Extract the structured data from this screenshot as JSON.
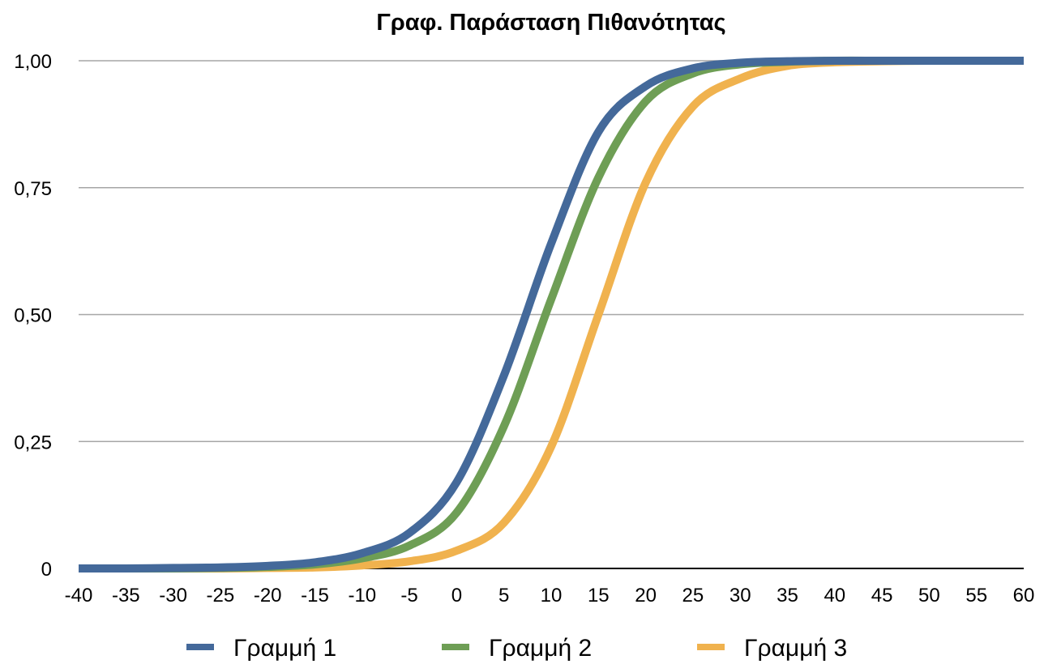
{
  "chart_data": {
    "type": "line",
    "title": "Γραφ. Παράσταση Πιθανότητας",
    "xlabel": "",
    "ylabel": "",
    "xlim": [
      -40,
      60
    ],
    "ylim": [
      0,
      1
    ],
    "x_ticks": [
      -40,
      -35,
      -30,
      -25,
      -20,
      -15,
      -10,
      -5,
      0,
      5,
      10,
      15,
      20,
      25,
      30,
      35,
      40,
      45,
      50,
      55,
      60
    ],
    "x_tick_labels": [
      "-40",
      "-35",
      "-30",
      "-25",
      "-20",
      "-15",
      "-10",
      "-5",
      "0",
      "5",
      "10",
      "15",
      "20",
      "25",
      "30",
      "35",
      "40",
      "45",
      "50",
      "55",
      "60"
    ],
    "y_ticks": [
      0,
      0.25,
      0.5,
      0.75,
      1.0
    ],
    "y_tick_labels": [
      "0",
      "0,25",
      "0,50",
      "0,75",
      "1,00"
    ],
    "grid": "horizontal",
    "legend_position": "bottom",
    "x": [
      -40,
      -35,
      -30,
      -25,
      -20,
      -15,
      -10,
      -5,
      0,
      5,
      10,
      15,
      20,
      25,
      30,
      35,
      40,
      45,
      50,
      55,
      60
    ],
    "series": [
      {
        "name": "Γραμμή 1",
        "color": "#44699a",
        "values": [
          0.0,
          0.0,
          0.001,
          0.002,
          0.005,
          0.012,
          0.03,
          0.07,
          0.17,
          0.38,
          0.64,
          0.86,
          0.95,
          0.985,
          0.996,
          0.999,
          1.0,
          1.0,
          1.0,
          1.0,
          1.0
        ]
      },
      {
        "name": "Γραμμή 2",
        "color": "#6e9e55",
        "values": [
          0.0,
          0.0,
          0.0,
          0.001,
          0.003,
          0.008,
          0.02,
          0.045,
          0.11,
          0.28,
          0.53,
          0.77,
          0.92,
          0.975,
          0.993,
          0.998,
          1.0,
          1.0,
          1.0,
          1.0,
          1.0
        ]
      },
      {
        "name": "Γραμμή 3",
        "color": "#f0b24e",
        "values": [
          0.0,
          0.0,
          0.0,
          0.0,
          0.001,
          0.002,
          0.006,
          0.014,
          0.035,
          0.09,
          0.24,
          0.5,
          0.76,
          0.91,
          0.965,
          0.99,
          0.997,
          0.999,
          1.0,
          1.0,
          1.0
        ]
      }
    ]
  }
}
